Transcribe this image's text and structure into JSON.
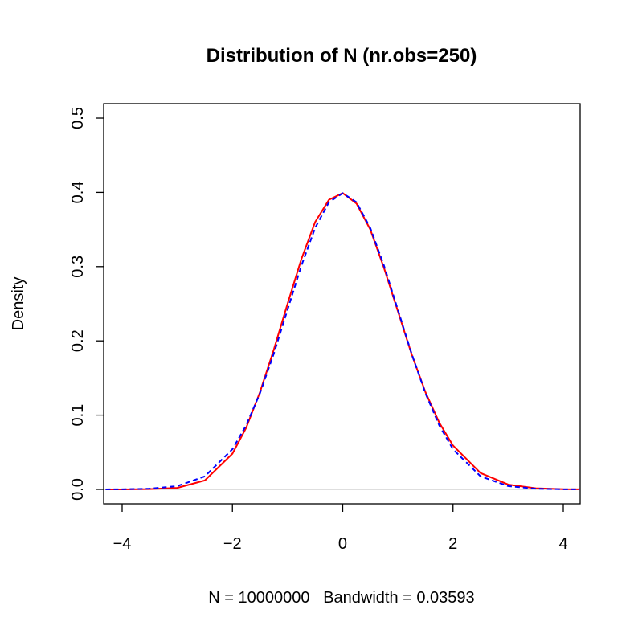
{
  "chart_data": {
    "type": "line",
    "title": "Distribution of N (nr.obs=250)",
    "x_label": "N = 10000000   Bandwidth = 0.03593",
    "y_label": "Density",
    "x": [
      -4.3,
      -4,
      -3.5,
      -3,
      -2.5,
      -2,
      -1.75,
      -1.5,
      -1.25,
      -1,
      -0.75,
      -0.5,
      -0.25,
      0,
      0.25,
      0.5,
      0.75,
      1,
      1.25,
      1.5,
      1.75,
      2,
      2.5,
      3,
      3.5,
      4,
      4.3
    ],
    "series": [
      {
        "color": "#ff0000",
        "dash": false,
        "values": [
          2e-05,
          5e-05,
          0.0004,
          0.002,
          0.012,
          0.048,
          0.083,
          0.131,
          0.188,
          0.25,
          0.31,
          0.36,
          0.39,
          0.399,
          0.385,
          0.35,
          0.298,
          0.24,
          0.182,
          0.131,
          0.09,
          0.059,
          0.022,
          0.0065,
          0.0015,
          0.0003,
          0.0001
        ]
      },
      {
        "color": "#0000ff",
        "dash": true,
        "values": [
          4e-05,
          0.0001,
          0.0009,
          0.0044,
          0.0175,
          0.054,
          0.0863,
          0.1295,
          0.1826,
          0.242,
          0.3011,
          0.3521,
          0.3867,
          0.3989,
          0.3867,
          0.3521,
          0.3011,
          0.242,
          0.1826,
          0.1295,
          0.0863,
          0.054,
          0.0175,
          0.0044,
          0.0009,
          0.0001,
          4e-05
        ]
      }
    ],
    "xlim": [
      -4.335,
      4.306
    ],
    "ylim": [
      -0.0195,
      0.5195
    ],
    "xticks": [
      {
        "value": -4,
        "label": "−4"
      },
      {
        "value": -2,
        "label": "−2"
      },
      0,
      2,
      4
    ],
    "yticks": [
      {
        "value": 0,
        "label": "0.0"
      },
      0.1,
      0.2,
      0.3,
      0.4,
      0.5
    ],
    "zero_line": true
  }
}
